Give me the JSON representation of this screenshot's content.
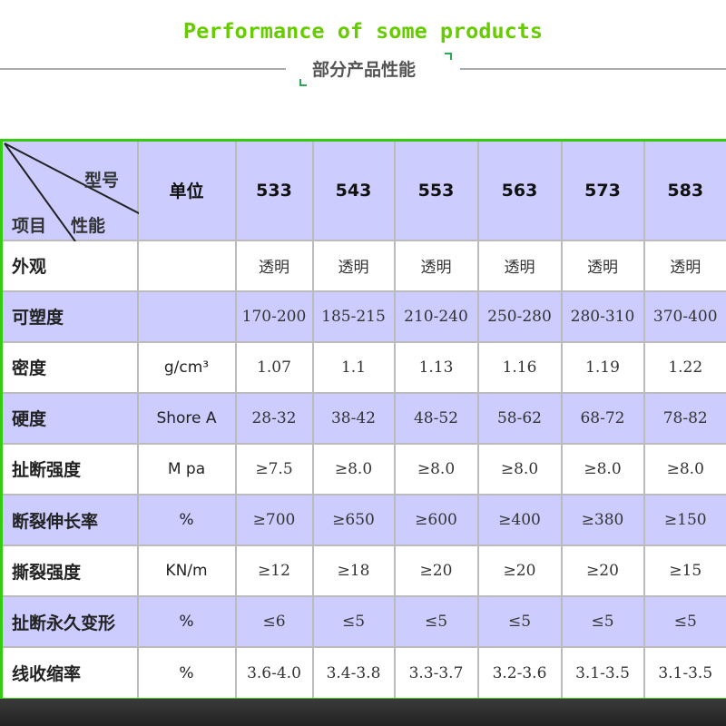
{
  "header": {
    "title": "Performance of some products",
    "subtitle": "部分产品性能"
  },
  "colors": {
    "title": "#66cc00",
    "border": "#33cc11",
    "row_highlight": "#ccccff"
  },
  "table": {
    "corner": {
      "model": "型号",
      "item": "项目",
      "performance": "性能"
    },
    "unit_header": "单位",
    "models": [
      "533",
      "543",
      "553",
      "563",
      "573",
      "583"
    ],
    "rows": [
      {
        "label": "外观",
        "unit": "",
        "values": [
          "透明",
          "透明",
          "透明",
          "透明",
          "透明",
          "透明"
        ]
      },
      {
        "label": "可塑度",
        "unit": "",
        "values": [
          "170-200",
          "185-215",
          "210-240",
          "250-280",
          "280-310",
          "370-400"
        ]
      },
      {
        "label": "密度",
        "unit": "g/cm³",
        "values": [
          "1.07",
          "1.1",
          "1.13",
          "1.16",
          "1.19",
          "1.22"
        ]
      },
      {
        "label": "硬度",
        "unit": "Shore A",
        "values": [
          "28-32",
          "38-42",
          "48-52",
          "58-62",
          "68-72",
          "78-82"
        ]
      },
      {
        "label": "扯断强度",
        "unit": "M pa",
        "values": [
          "≥7.5",
          "≥8.0",
          "≥8.0",
          "≥8.0",
          "≥8.0",
          "≥8.0"
        ]
      },
      {
        "label": "断裂伸长率",
        "unit": "%",
        "values": [
          "≥700",
          "≥650",
          "≥600",
          "≥400",
          "≥380",
          "≥150"
        ]
      },
      {
        "label": "撕裂强度",
        "unit": "KN/m",
        "values": [
          "≥12",
          "≥18",
          "≥20",
          "≥20",
          "≥20",
          "≥15"
        ]
      },
      {
        "label": "扯断永久变形",
        "unit": "%",
        "values": [
          "≤6",
          "≤5",
          "≤5",
          "≤5",
          "≤5",
          "≤5"
        ]
      },
      {
        "label": "线收缩率",
        "unit": "%",
        "values": [
          "3.6-4.0",
          "3.4-3.8",
          "3.3-3.7",
          "3.2-3.6",
          "3.1-3.5",
          "3.1-3.5"
        ]
      }
    ]
  }
}
